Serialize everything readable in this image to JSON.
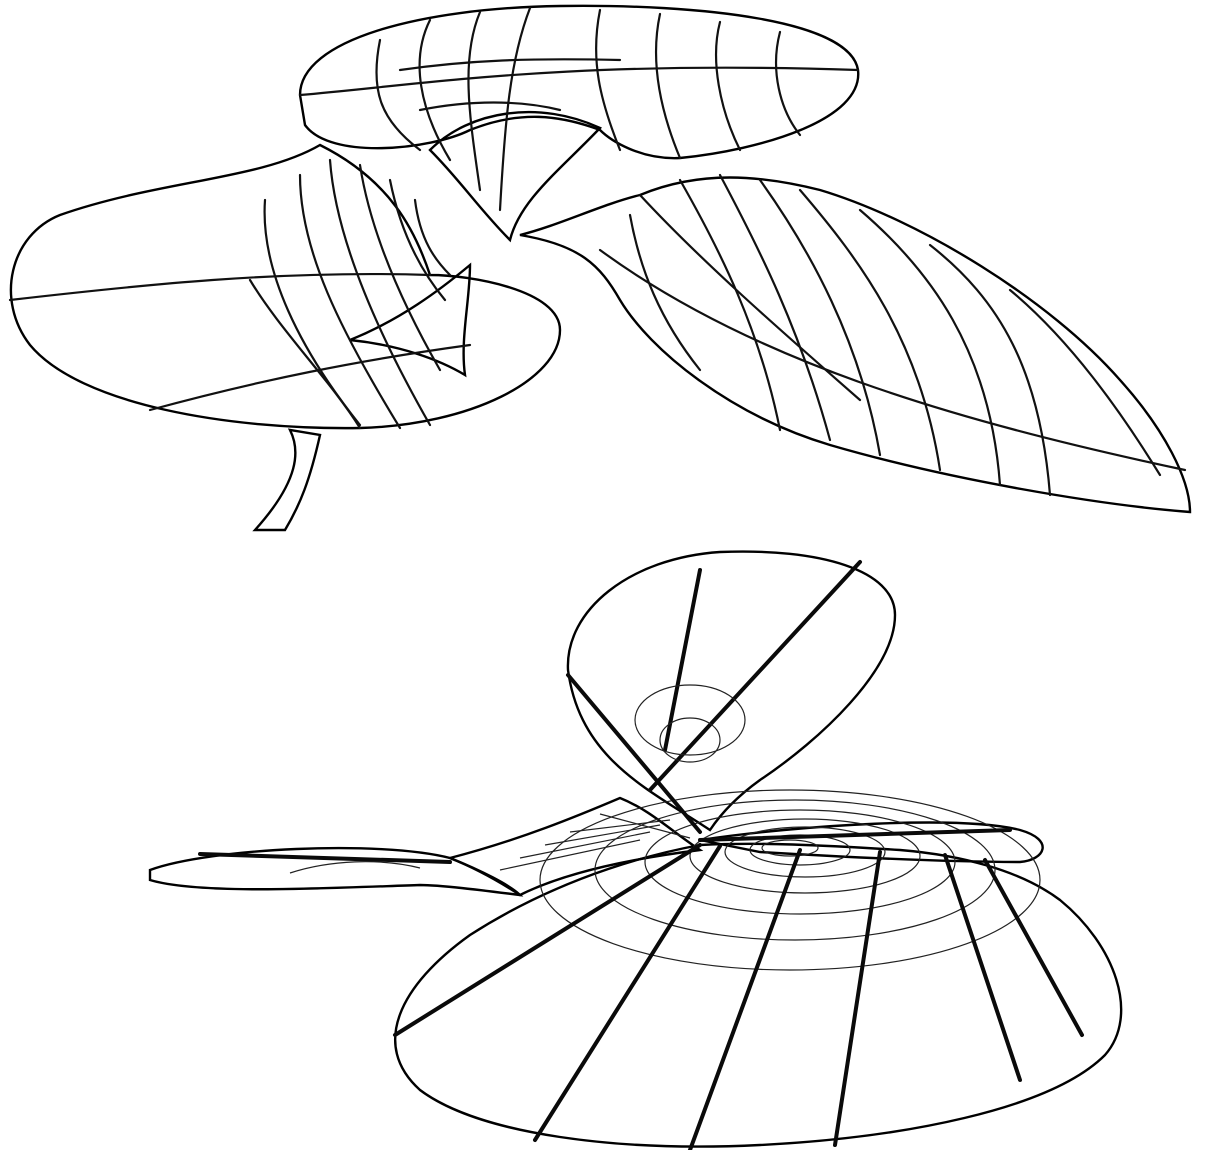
{
  "figures": [
    {
      "surface_color": "#b9bddf",
      "inner_color": "#d6e4e0"
    },
    {
      "surface_color": "#9da2c9",
      "inner_color": "#dfe8e6"
    }
  ]
}
